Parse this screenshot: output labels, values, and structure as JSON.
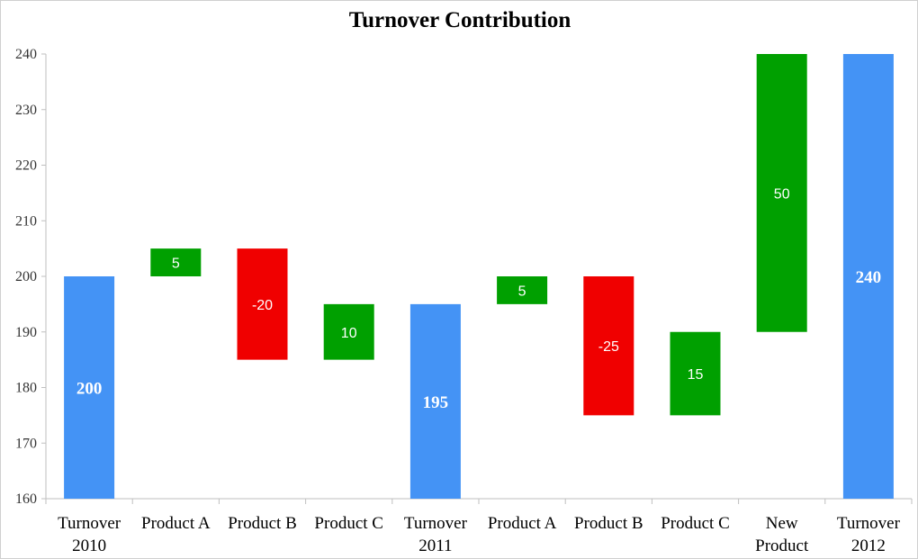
{
  "chart_data": {
    "type": "bar",
    "subtype": "waterfall",
    "title": "Turnover Contribution",
    "xlabel": "",
    "ylabel": "",
    "ylim": [
      160,
      240
    ],
    "yticks": [
      160,
      170,
      180,
      190,
      200,
      210,
      220,
      230,
      240
    ],
    "grid": false,
    "legend": "none",
    "categories": [
      [
        "Turnover",
        "2010"
      ],
      [
        "Product A"
      ],
      [
        "Product B"
      ],
      [
        "Product C"
      ],
      [
        "Turnover",
        "2011"
      ],
      [
        "Product A"
      ],
      [
        "Product B"
      ],
      [
        "Product C"
      ],
      [
        "New",
        "Product"
      ],
      [
        "Turnover",
        "2012"
      ]
    ],
    "bars": [
      {
        "kind": "total",
        "start": 0,
        "end": 200,
        "label": "200"
      },
      {
        "kind": "increase",
        "start": 200,
        "end": 205,
        "label": "5"
      },
      {
        "kind": "decrease",
        "start": 205,
        "end": 185,
        "label": "-20"
      },
      {
        "kind": "increase",
        "start": 185,
        "end": 195,
        "label": "10"
      },
      {
        "kind": "total",
        "start": 0,
        "end": 195,
        "label": "195"
      },
      {
        "kind": "increase",
        "start": 195,
        "end": 200,
        "label": "5"
      },
      {
        "kind": "decrease",
        "start": 200,
        "end": 175,
        "label": "-25"
      },
      {
        "kind": "increase",
        "start": 175,
        "end": 190,
        "label": "15"
      },
      {
        "kind": "increase",
        "start": 190,
        "end": 240,
        "label": "50"
      },
      {
        "kind": "total",
        "start": 0,
        "end": 240,
        "label": "240"
      }
    ],
    "colors": {
      "total": "#4493f5",
      "increase": "#00a000",
      "decrease": "#f00000",
      "axis": "#bfbfbf"
    }
  }
}
